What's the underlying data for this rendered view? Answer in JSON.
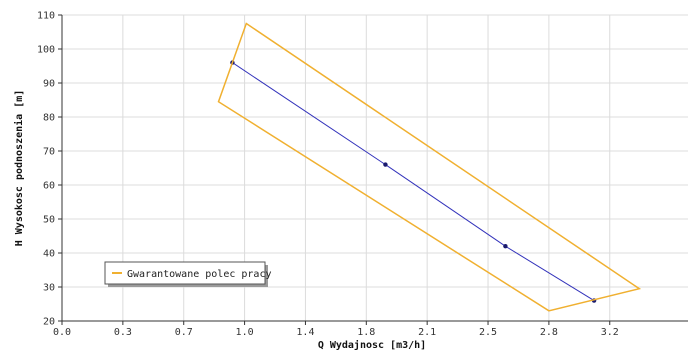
{
  "chart_data": {
    "type": "line",
    "xlabel": "Q Wydajnosc [m3/h]",
    "ylabel": "H Wysokosc podnoszenia [m]",
    "xlim": [
      0,
      3.6
    ],
    "ylim": [
      20,
      110
    ],
    "x_ticks": [
      0.0,
      0.35,
      0.7,
      1.05,
      1.4,
      1.75,
      2.1,
      2.45,
      2.8,
      3.15
    ],
    "x_tick_labels": [
      "0.0",
      "0.3",
      "0.7",
      "1.0",
      "1.4",
      "1.8",
      "2.1",
      "2.5",
      "2.8",
      "3.2"
    ],
    "y_ticks": [
      20,
      30,
      40,
      50,
      60,
      70,
      80,
      90,
      100,
      110
    ],
    "y_tick_labels": [
      "20",
      "30",
      "40",
      "50",
      "60",
      "70",
      "80",
      "90",
      "100",
      "110"
    ],
    "grid": true,
    "legend_position": "bottom-left",
    "series": [
      {
        "kind": "line-with-markers",
        "color": "#3333bb",
        "x": [
          0.98,
          1.86,
          2.55,
          3.06
        ],
        "y": [
          96,
          66,
          42,
          26
        ]
      },
      {
        "name": "Gwarantowane polec pracy",
        "kind": "polygon",
        "color": "#f0b030",
        "x": [
          1.06,
          3.32,
          2.8,
          0.9
        ],
        "y": [
          107.5,
          29.5,
          23,
          84.5
        ]
      }
    ]
  }
}
